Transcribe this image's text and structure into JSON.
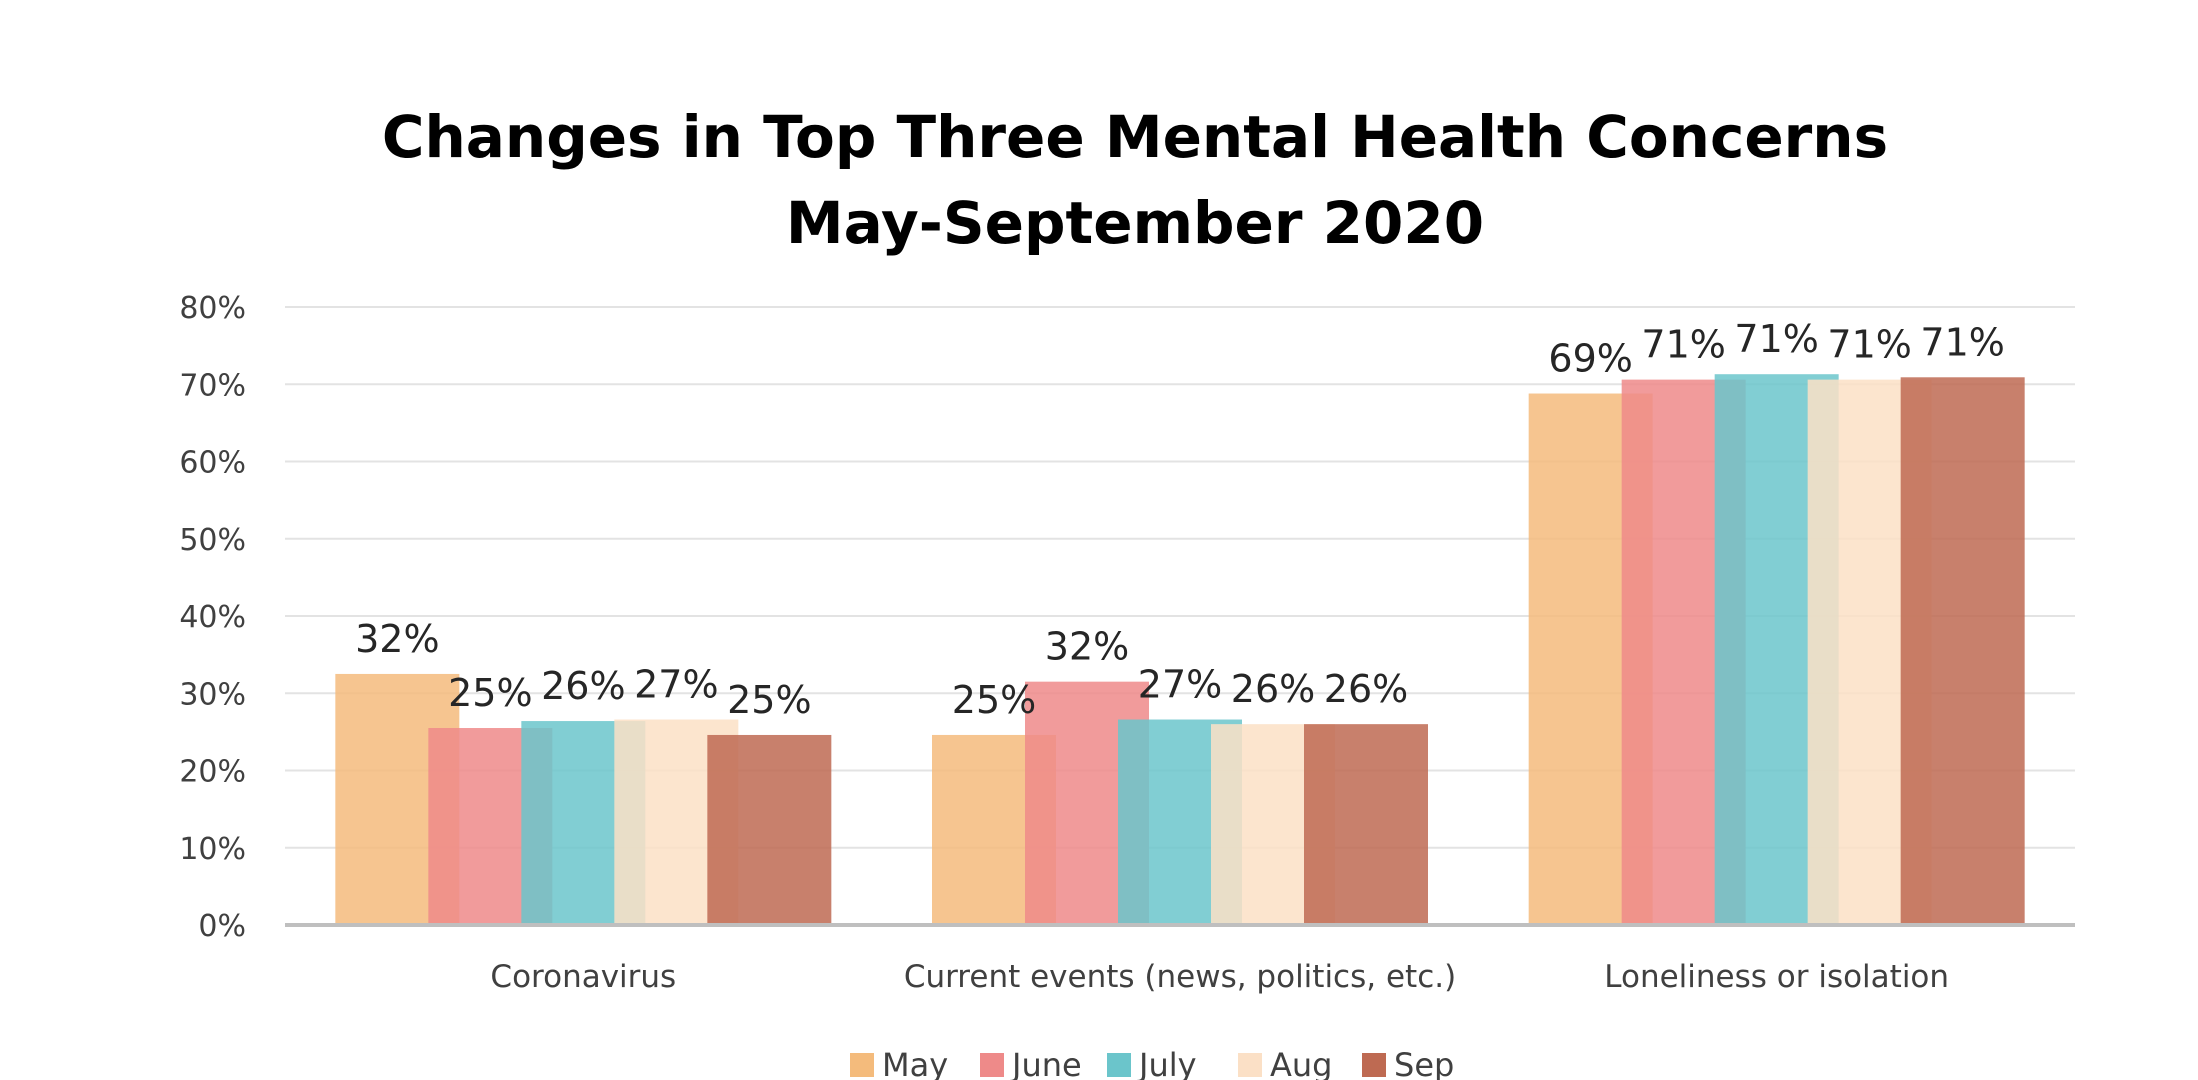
{
  "chart_data": {
    "type": "bar",
    "title_lines": [
      "Changes in Top Three Mental Health Concerns",
      "May-September 2020"
    ],
    "categories": [
      "Coronavirus",
      "Current events (news, politics, etc.)",
      "Loneliness or isolation"
    ],
    "series": [
      {
        "name": "May",
        "color": "#F4BB7C",
        "values": [
          32.5,
          24.6,
          68.8
        ],
        "labels": [
          "32%",
          "25%",
          "69%"
        ]
      },
      {
        "name": "June",
        "color": "#EE8A89",
        "values": [
          25.5,
          31.5,
          70.6
        ],
        "labels": [
          "25%",
          "32%",
          "71%"
        ]
      },
      {
        "name": "July",
        "color": "#6BC5CB",
        "values": [
          26.4,
          26.6,
          71.3
        ],
        "labels": [
          "26%",
          "27%",
          "71%"
        ]
      },
      {
        "name": "Aug",
        "color": "#FBE0C6",
        "values": [
          26.6,
          26.0,
          70.6
        ],
        "labels": [
          "27%",
          "26%",
          "71%"
        ]
      },
      {
        "name": "Sep",
        "color": "#BE6A52",
        "values": [
          24.6,
          26.0,
          70.9
        ],
        "labels": [
          "25%",
          "26%",
          "71%"
        ]
      }
    ],
    "ylim": [
      0,
      80
    ],
    "yticks": [
      0,
      10,
      20,
      30,
      40,
      50,
      60,
      70,
      80
    ],
    "ytick_labels": [
      "0%",
      "10%",
      "20%",
      "30%",
      "40%",
      "50%",
      "60%",
      "70%",
      "80%"
    ],
    "grid": true,
    "legend_position": "bottom"
  }
}
